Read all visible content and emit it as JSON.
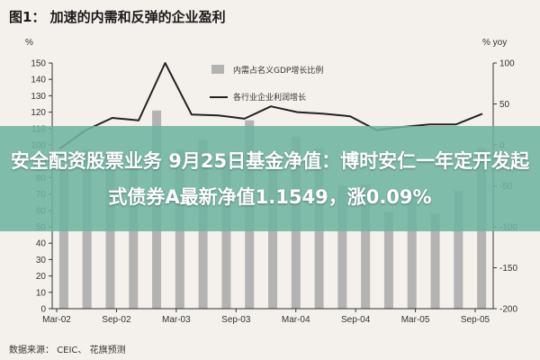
{
  "figure_title": "图1： 加速的内需和反弹的企业盈利",
  "source_note": "数据来源： CEIC、 花旗预测",
  "overlay_headline": "安全配资股票业务 9月25日基金净值：博时安仁一年定开发起式债券A最新净值1.1549，涨0.09%",
  "colors": {
    "bar": "#b3b3b3",
    "line": "#222222",
    "banner": "#6eb4a0"
  },
  "chart_data": {
    "type": "bar",
    "title": "加速的内需和反弹的企业盈利",
    "left_axis": {
      "unit": "%",
      "ylim": [
        0,
        150
      ],
      "ticks": [
        "0",
        "10",
        "20",
        "30",
        "40",
        "50",
        "60",
        "70",
        "80",
        "90",
        "100",
        "110",
        "120",
        "130",
        "140",
        "150"
      ]
    },
    "right_axis": {
      "unit": "% yoy",
      "ylim": [
        -200,
        100
      ],
      "ticks": [
        "-200",
        "-150",
        "-100",
        "-50",
        "0",
        "50",
        "100"
      ]
    },
    "x_tick_labels": [
      "Mar-02",
      "Sep-02",
      "Mar-03",
      "Sep-03",
      "Mar-04",
      "Sep-04",
      "Mar-05",
      "Sep-05"
    ],
    "legend_position": "top-right",
    "grid": false,
    "series": [
      {
        "name": "内需占名义GDP增长比例",
        "kind": "bar",
        "axis": "left",
        "values": [
          88,
          97,
          96,
          97,
          121,
          97,
          103,
          93,
          115,
          90,
          105,
          98,
          75,
          76,
          59,
          72,
          58,
          72,
          98
        ]
      },
      {
        "name": "各行业企业利润增长",
        "kind": "line",
        "axis": "right",
        "values": [
          -5,
          18,
          33,
          30,
          100,
          37,
          36,
          32,
          47,
          40,
          38,
          35,
          18,
          22,
          25,
          25,
          38
        ]
      }
    ]
  }
}
